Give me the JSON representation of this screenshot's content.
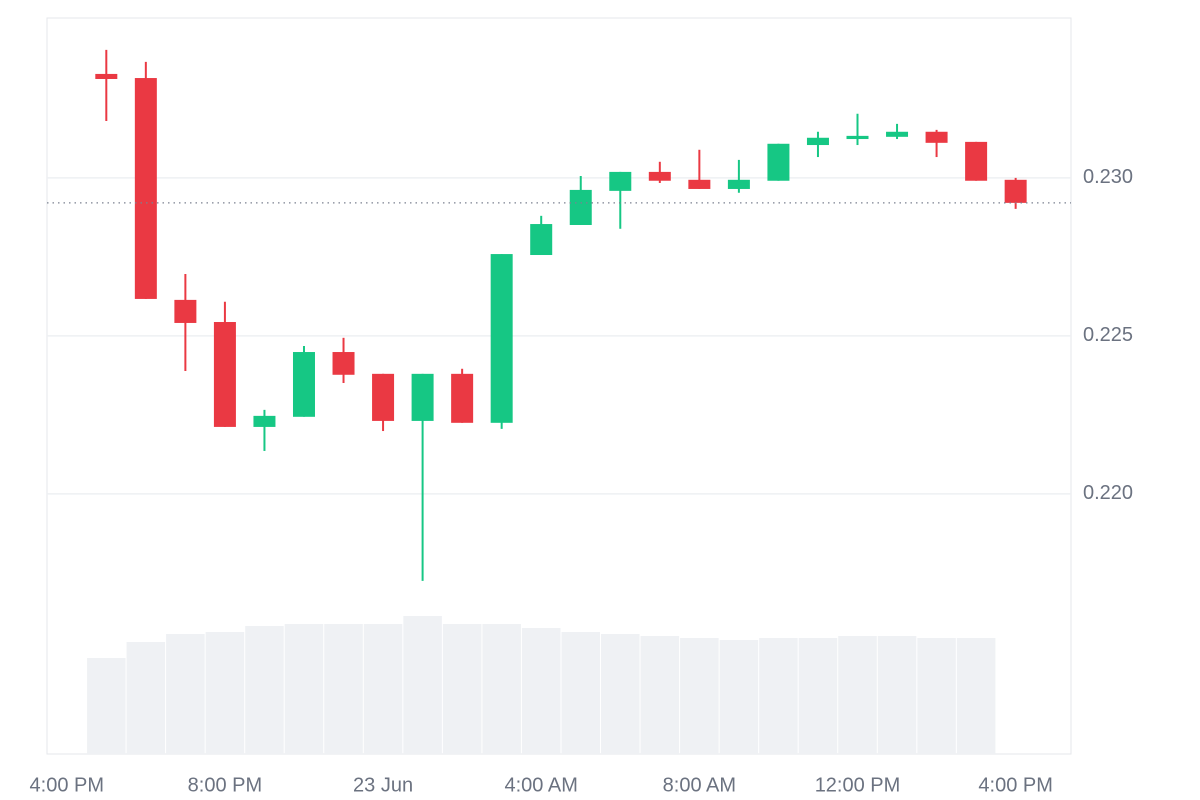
{
  "chart_data": {
    "type": "candlestick",
    "x": [
      1,
      2,
      3,
      4,
      5,
      6,
      7,
      8,
      9,
      10,
      11,
      12,
      13,
      14,
      15,
      16,
      17,
      18,
      19,
      20,
      21,
      22,
      23,
      24
    ],
    "open": [
      0.23329,
      0.23316,
      0.22614,
      0.22544,
      0.22212,
      0.22244,
      0.22449,
      0.2238,
      0.22231,
      0.2238,
      0.22225,
      0.22756,
      0.22851,
      0.22959,
      0.23019,
      0.22994,
      0.22965,
      0.22991,
      0.23104,
      0.23123,
      0.2313,
      0.23146,
      0.23114,
      0.22994
    ],
    "high": [
      0.23405,
      0.23367,
      0.22696,
      0.22608,
      0.22266,
      0.22468,
      0.22494,
      0.2238,
      0.2238,
      0.22396,
      0.22759,
      0.2288,
      0.23006,
      0.23019,
      0.23051,
      0.23089,
      0.23057,
      0.23108,
      0.23146,
      0.23203,
      0.23171,
      0.23152,
      0.23114,
      0.23
    ],
    "low": [
      0.2318,
      0.22617,
      0.22389,
      0.22212,
      0.22136,
      0.22244,
      0.22351,
      0.22199,
      0.21725,
      0.22225,
      0.22206,
      0.22756,
      0.22851,
      0.22839,
      0.22984,
      0.22965,
      0.22953,
      0.22991,
      0.23066,
      0.23104,
      0.23123,
      0.23066,
      0.22991,
      0.22902
    ],
    "close": [
      0.23313,
      0.22617,
      0.22541,
      0.22212,
      0.22247,
      0.22449,
      0.22377,
      0.22231,
      0.2238,
      0.22225,
      0.22759,
      0.22854,
      0.22962,
      0.23019,
      0.22991,
      0.22965,
      0.22994,
      0.23108,
      0.23127,
      0.23133,
      0.23146,
      0.23111,
      0.22991,
      0.22921
    ],
    "volume": [
      96,
      112,
      120,
      122,
      128,
      130,
      130,
      130,
      138,
      130,
      130,
      126,
      122,
      120,
      118,
      116,
      114,
      116,
      116,
      118,
      118,
      116,
      116,
      null
    ],
    "volume_lim": [
      0,
      736
    ],
    "up_color": "#16c784",
    "down_color": "#ea3943",
    "volume_color": "#eff1f4",
    "xlim": [
      -0.5,
      25.4
    ],
    "xticks": [
      {
        "value": 0,
        "label": "4:00 PM"
      },
      {
        "value": 4,
        "label": "8:00 PM"
      },
      {
        "value": 8,
        "label": "23 Jun"
      },
      {
        "value": 12,
        "label": "4:00 AM"
      },
      {
        "value": 16,
        "label": "8:00 AM"
      },
      {
        "value": 20,
        "label": "12:00 PM"
      },
      {
        "value": 24,
        "label": "4:00 PM"
      }
    ],
    "ylim": [
      0.21177,
      0.23506
    ],
    "yticks": [
      {
        "value": 0.22,
        "label": "0.220"
      },
      {
        "value": 0.225,
        "label": "0.225"
      },
      {
        "value": 0.23,
        "label": "0.230"
      }
    ],
    "grid": true,
    "last_price_line": true
  }
}
